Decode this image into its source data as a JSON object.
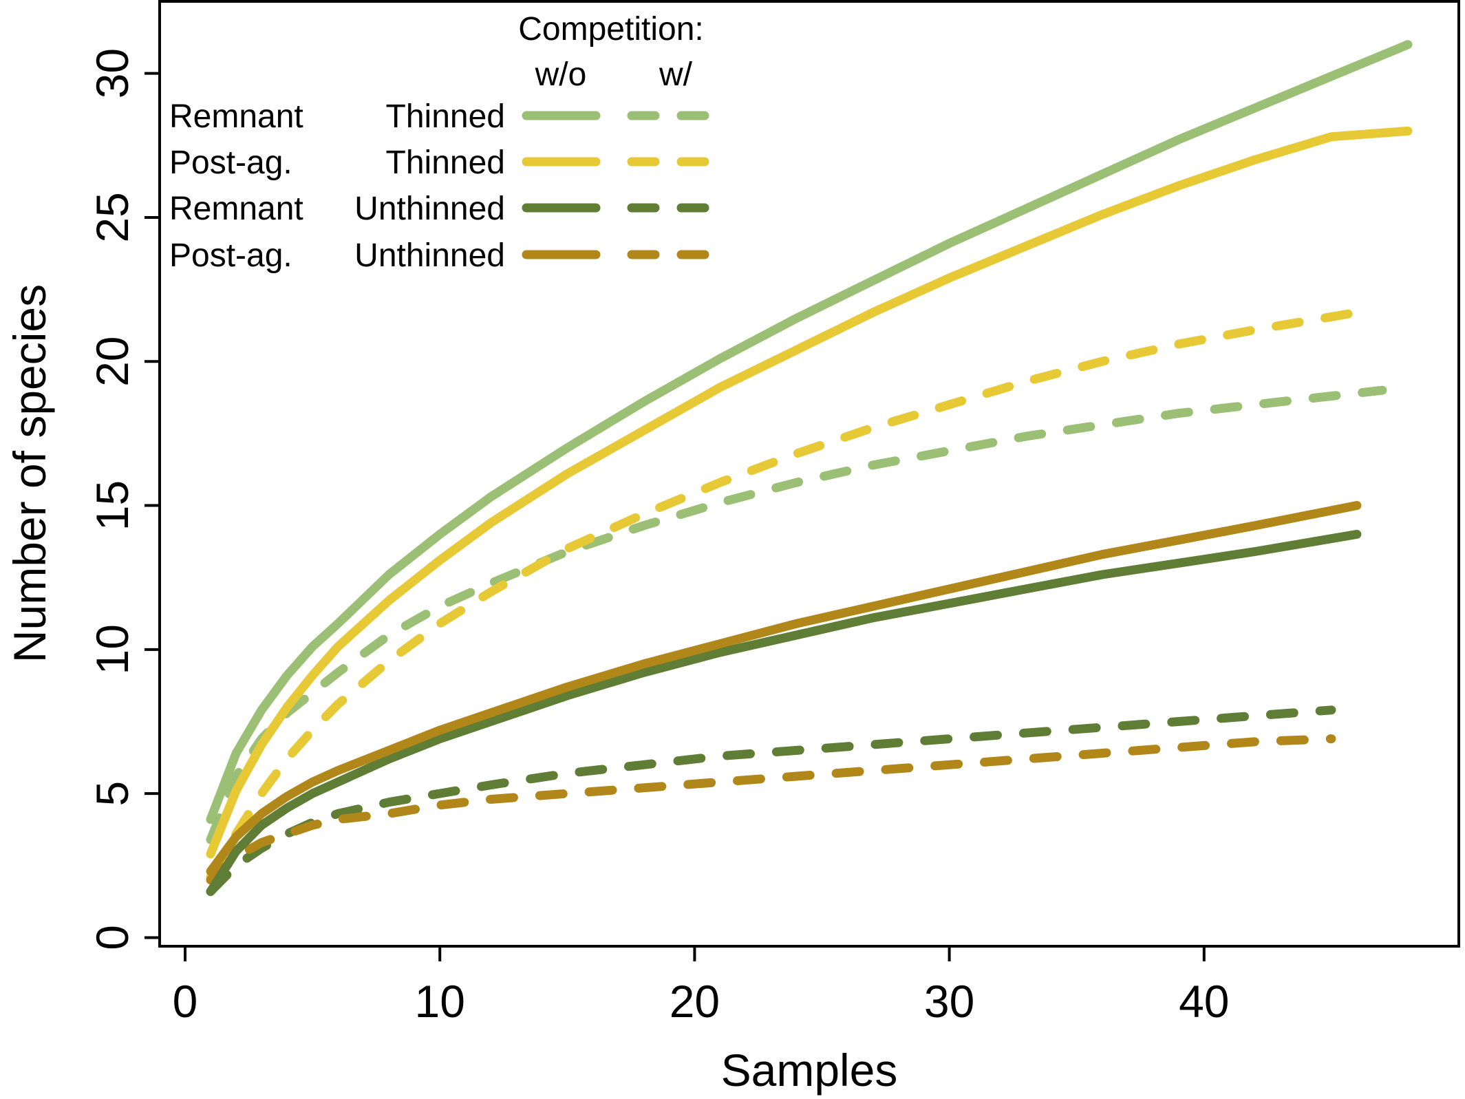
{
  "chart_data": {
    "type": "line",
    "title": "",
    "xlabel": "Samples",
    "ylabel": "Number of species",
    "xlim": [
      -1,
      50
    ],
    "ylim": [
      -0.3,
      32.5
    ],
    "x_ticks": [
      0,
      10,
      20,
      30,
      40
    ],
    "y_ticks": [
      0,
      5,
      10,
      15,
      20,
      25,
      30
    ],
    "grid": false,
    "legend": {
      "placement": "top-left",
      "header": "Competition:",
      "column_labels": [
        "w/o",
        "w/"
      ],
      "rows": [
        {
          "col1": "Remnant",
          "col2": "Thinned",
          "color": "#9bbf74"
        },
        {
          "col1": "Post-ag.",
          "col2": "Thinned",
          "color": "#e6c935"
        },
        {
          "col1": "Remnant",
          "col2": "Unthinned",
          "color": "#5f7d34"
        },
        {
          "col1": "Post-ag.",
          "col2": "Unthinned",
          "color": "#b08718"
        }
      ]
    },
    "series": [
      {
        "site": "Remnant",
        "treatment": "Thinned",
        "competition": "w/o",
        "color": "#9bbf74",
        "dash": false,
        "x": [
          1,
          2,
          3,
          4,
          5,
          6,
          8,
          10,
          12,
          15,
          18,
          21,
          24,
          27,
          30,
          33,
          36,
          39,
          42,
          45,
          48
        ],
        "y": [
          4.1,
          6.4,
          7.9,
          9.1,
          10.1,
          10.9,
          12.6,
          14.0,
          15.3,
          17.0,
          18.6,
          20.1,
          21.5,
          22.8,
          24.1,
          25.3,
          26.5,
          27.7,
          28.8,
          29.9,
          31.0
        ]
      },
      {
        "site": "Remnant",
        "treatment": "Thinned",
        "competition": "w/",
        "color": "#9bbf74",
        "dash": true,
        "x": [
          1,
          2,
          3,
          4,
          5,
          6,
          8,
          10,
          12,
          15,
          18,
          21,
          24,
          27,
          30,
          33,
          36,
          39,
          42,
          45,
          47
        ],
        "y": [
          3.4,
          5.6,
          6.9,
          7.8,
          8.5,
          9.2,
          10.5,
          11.5,
          12.3,
          13.4,
          14.3,
          15.1,
          15.8,
          16.4,
          16.9,
          17.4,
          17.8,
          18.2,
          18.5,
          18.8,
          19.0
        ]
      },
      {
        "site": "Post-ag.",
        "treatment": "Thinned",
        "competition": "w/o",
        "color": "#e6c935",
        "dash": false,
        "x": [
          1,
          2,
          3,
          4,
          5,
          6,
          8,
          10,
          12,
          15,
          18,
          21,
          24,
          27,
          30,
          33,
          36,
          39,
          42,
          45,
          48
        ],
        "y": [
          2.9,
          5.1,
          6.7,
          8.0,
          9.1,
          10.1,
          11.7,
          13.1,
          14.4,
          16.1,
          17.6,
          19.1,
          20.4,
          21.7,
          22.9,
          24.0,
          25.1,
          26.1,
          27.0,
          27.8,
          28.0
        ]
      },
      {
        "site": "Post-ag.",
        "treatment": "Thinned",
        "competition": "w/",
        "color": "#e6c935",
        "dash": true,
        "x": [
          1,
          2,
          3,
          4,
          5,
          6,
          8,
          10,
          12,
          15,
          18,
          21,
          24,
          27,
          30,
          33,
          36,
          39,
          42,
          46
        ],
        "y": [
          2.1,
          3.6,
          5.0,
          6.2,
          7.2,
          8.1,
          9.6,
          10.9,
          12.0,
          13.5,
          14.7,
          15.8,
          16.8,
          17.7,
          18.5,
          19.3,
          20.0,
          20.6,
          21.1,
          21.7
        ]
      },
      {
        "site": "Remnant",
        "treatment": "Unthinned",
        "competition": "w/o",
        "color": "#5f7d34",
        "dash": false,
        "x": [
          1,
          2,
          3,
          4,
          5,
          6,
          8,
          10,
          12,
          15,
          18,
          21,
          24,
          27,
          30,
          33,
          36,
          39,
          42,
          46
        ],
        "y": [
          1.6,
          3.0,
          3.9,
          4.5,
          5.0,
          5.4,
          6.2,
          6.9,
          7.5,
          8.4,
          9.2,
          9.9,
          10.5,
          11.1,
          11.6,
          12.1,
          12.6,
          13.0,
          13.4,
          14.0
        ]
      },
      {
        "site": "Remnant",
        "treatment": "Unthinned",
        "competition": "w/",
        "color": "#5f7d34",
        "dash": true,
        "x": [
          1,
          2,
          3,
          4,
          5,
          6,
          8,
          10,
          12,
          15,
          18,
          21,
          24,
          27,
          30,
          33,
          36,
          39,
          42,
          45
        ],
        "y": [
          1.6,
          2.5,
          3.1,
          3.6,
          4.0,
          4.3,
          4.7,
          5.0,
          5.3,
          5.7,
          6.0,
          6.3,
          6.5,
          6.7,
          6.9,
          7.1,
          7.3,
          7.5,
          7.7,
          7.9
        ]
      },
      {
        "site": "Post-ag.",
        "treatment": "Unthinned",
        "competition": "w/o",
        "color": "#b08718",
        "dash": false,
        "x": [
          1,
          2,
          3,
          4,
          5,
          6,
          8,
          10,
          12,
          15,
          18,
          21,
          24,
          27,
          30,
          33,
          36,
          39,
          42,
          46
        ],
        "y": [
          2.3,
          3.5,
          4.3,
          4.9,
          5.4,
          5.8,
          6.5,
          7.2,
          7.8,
          8.7,
          9.5,
          10.2,
          10.9,
          11.5,
          12.1,
          12.7,
          13.3,
          13.8,
          14.3,
          15.0
        ]
      },
      {
        "site": "Post-ag.",
        "treatment": "Unthinned",
        "competition": "w/",
        "color": "#b08718",
        "dash": true,
        "x": [
          1,
          2,
          3,
          4,
          5,
          6,
          8,
          10,
          12,
          15,
          18,
          21,
          24,
          27,
          30,
          33,
          36,
          39,
          42,
          45
        ],
        "y": [
          2.0,
          2.8,
          3.3,
          3.6,
          3.9,
          4.1,
          4.3,
          4.6,
          4.8,
          5.0,
          5.2,
          5.4,
          5.6,
          5.8,
          6.0,
          6.2,
          6.4,
          6.6,
          6.8,
          6.9
        ]
      }
    ]
  }
}
